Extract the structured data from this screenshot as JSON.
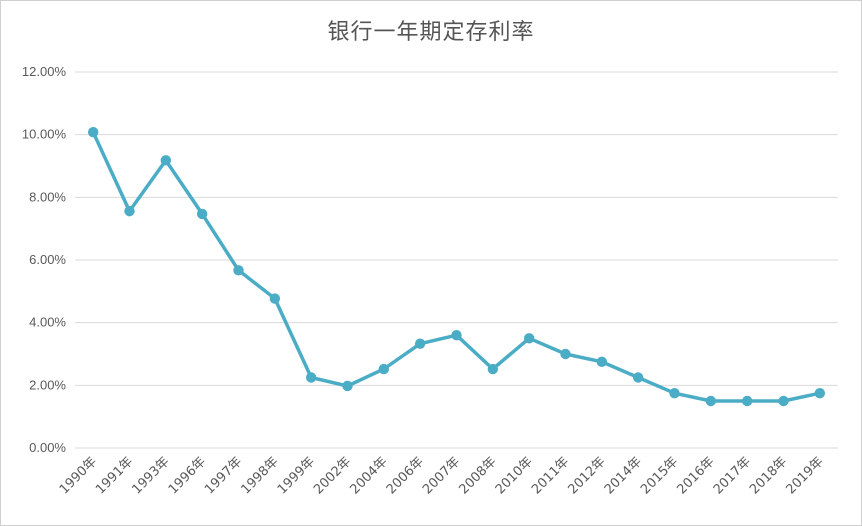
{
  "chart_data": {
    "type": "line",
    "title": "银行一年期定存利率",
    "xlabel": "",
    "ylabel": "",
    "ylim": [
      0,
      12
    ],
    "y_tick_labels": [
      "0.00%",
      "2.00%",
      "4.00%",
      "6.00%",
      "8.00%",
      "10.00%",
      "12.00%"
    ],
    "y_ticks": [
      0,
      2,
      4,
      6,
      8,
      10,
      12
    ],
    "grid": true,
    "legend": "none",
    "color": "#4bacc6",
    "categories": [
      "1990年",
      "1991年",
      "1993年",
      "1996年",
      "1997年",
      "1998年",
      "1999年",
      "2002年",
      "2004年",
      "2006年",
      "2007年",
      "2008年",
      "2010年",
      "2011年",
      "2012年",
      "2014年",
      "2015年",
      "2016年",
      "2017年",
      "2018年",
      "2019年"
    ],
    "series": [
      {
        "values": [
          10.08,
          7.56,
          9.18,
          7.47,
          5.67,
          4.77,
          2.25,
          1.98,
          2.52,
          3.33,
          3.6,
          2.52,
          3.5,
          3.0,
          2.75,
          2.25,
          1.75,
          1.5,
          1.5,
          1.5,
          1.75
        ]
      }
    ]
  }
}
